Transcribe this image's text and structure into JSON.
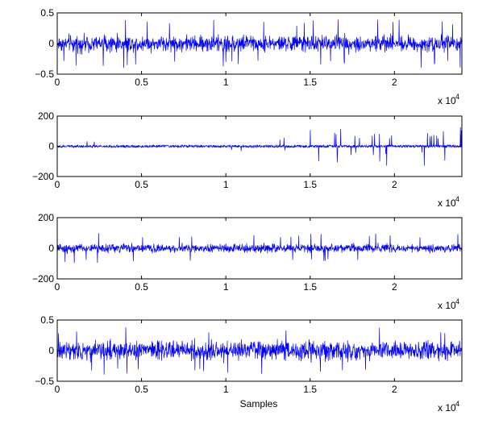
{
  "chart_data": [
    {
      "type": "line",
      "title": "",
      "xlabel": "",
      "ylabel": "",
      "xlim": [
        0,
        24000
      ],
      "ylim": [
        -0.5,
        0.5
      ],
      "x_ticks": [
        0,
        0.5,
        1,
        1.5,
        2
      ],
      "x_tick_labels": [
        "0",
        "0.5",
        "1",
        "1.5",
        "2"
      ],
      "y_ticks": [
        -0.5,
        0,
        0.5
      ],
      "y_tick_labels": [
        "−0.5",
        "0",
        "0.5"
      ],
      "x_multiplier": "x 10",
      "x_multiplier_exp": "4",
      "series": [
        {
          "color": "#0000ff",
          "n_samples": 24000,
          "typical_amplitude": 0.12,
          "peak_amplitude": 0.4,
          "description_of_shape": "dense stationary noise around 0"
        }
      ]
    },
    {
      "type": "line",
      "title": "",
      "xlabel": "",
      "ylabel": "",
      "xlim": [
        0,
        24000
      ],
      "ylim": [
        -200,
        200
      ],
      "x_ticks": [
        0,
        0.5,
        1,
        1.5,
        2
      ],
      "x_tick_labels": [
        "0",
        "0.5",
        "1",
        "1.5",
        "2"
      ],
      "y_ticks": [
        -200,
        0,
        200
      ],
      "y_tick_labels": [
        "−200",
        "0",
        "200"
      ],
      "x_multiplier": "x 10",
      "x_multiplier_exp": "4",
      "series": [
        {
          "color": "#0000ff",
          "n_samples": 24000,
          "typical_amplitude": 8,
          "peak_amplitude": 130,
          "description_of_shape": "low noise with sparse spikes, increasing after 1.5e4"
        }
      ]
    },
    {
      "type": "line",
      "title": "",
      "xlabel": "",
      "ylabel": "",
      "xlim": [
        0,
        24000
      ],
      "ylim": [
        -200,
        200
      ],
      "x_ticks": [
        0,
        0.5,
        1,
        1.5,
        2
      ],
      "x_tick_labels": [
        "0",
        "0.5",
        "1",
        "1.5",
        "2"
      ],
      "y_ticks": [
        -200,
        0,
        200
      ],
      "y_tick_labels": [
        "−200",
        "0",
        "200"
      ],
      "x_multiplier": "x 10",
      "x_multiplier_exp": "4",
      "series": [
        {
          "color": "#0000ff",
          "n_samples": 24000,
          "typical_amplitude": 25,
          "peak_amplitude": 100,
          "description_of_shape": "dense stationary noise around 0"
        }
      ]
    },
    {
      "type": "line",
      "title": "",
      "xlabel": "Samples",
      "ylabel": "",
      "xlim": [
        0,
        24000
      ],
      "ylim": [
        -0.5,
        0.5
      ],
      "x_ticks": [
        0,
        0.5,
        1,
        1.5,
        2
      ],
      "x_tick_labels": [
        "0",
        "0.5",
        "1",
        "1.5",
        "2"
      ],
      "y_ticks": [
        -0.5,
        0,
        0.5
      ],
      "y_tick_labels": [
        "−0.5",
        "0",
        "0.5"
      ],
      "x_multiplier": "x 10",
      "x_multiplier_exp": "4",
      "series": [
        {
          "color": "#0000ff",
          "n_samples": 24000,
          "typical_amplitude": 0.14,
          "peak_amplitude": 0.4,
          "description_of_shape": "dense stationary noise around 0"
        }
      ]
    }
  ]
}
